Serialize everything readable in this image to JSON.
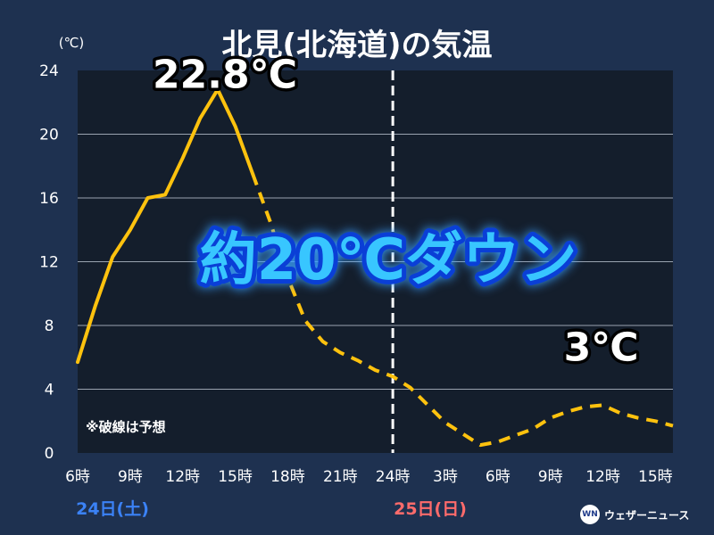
{
  "chart_data": {
    "type": "line",
    "title": "北見(北海道)の気温",
    "ylabel": "(℃)",
    "ylim": [
      0,
      24
    ],
    "yticks": [
      "0",
      "4",
      "8",
      "12",
      "16",
      "20",
      "24"
    ],
    "xlim": [
      6,
      40
    ],
    "x_tick_values": [
      6,
      9,
      12,
      15,
      18,
      21,
      24,
      27,
      30,
      33,
      36,
      39
    ],
    "x_tick_labels": [
      "6時",
      "9時",
      "12時",
      "15時",
      "18時",
      "21時",
      "24時",
      "3時",
      "6時",
      "9時",
      "12時",
      "15時"
    ],
    "date_labels": [
      {
        "text": "24日(土)",
        "color": "#3b82f6"
      },
      {
        "text": "25日(日)",
        "color": "#ff6b6b"
      }
    ],
    "divider_x": 24,
    "grid": true,
    "series": [
      {
        "color": "#ffc20e",
        "observed": [
          [
            6,
            5.7
          ],
          [
            7,
            9.2
          ],
          [
            8,
            12.3
          ],
          [
            9,
            14.0
          ],
          [
            10,
            16.0
          ],
          [
            11,
            16.2
          ],
          [
            12,
            18.5
          ],
          [
            13,
            21.0
          ],
          [
            14,
            22.8
          ],
          [
            15,
            20.5
          ],
          [
            16,
            17.5
          ]
        ],
        "forecast": [
          [
            16,
            17.5
          ],
          [
            17,
            14.5
          ],
          [
            18,
            11.0
          ],
          [
            19,
            8.3
          ],
          [
            20,
            7.0
          ],
          [
            21,
            6.3
          ],
          [
            22,
            5.8
          ],
          [
            23,
            5.2
          ],
          [
            24,
            4.8
          ],
          [
            25,
            4.1
          ],
          [
            26,
            3.0
          ],
          [
            27,
            1.9
          ],
          [
            28,
            1.2
          ],
          [
            29,
            0.5
          ],
          [
            30,
            0.7
          ],
          [
            31,
            1.1
          ],
          [
            32,
            1.5
          ],
          [
            33,
            2.2
          ],
          [
            34,
            2.6
          ],
          [
            35,
            2.9
          ],
          [
            36,
            3.0
          ],
          [
            37,
            2.5
          ],
          [
            38,
            2.2
          ],
          [
            39,
            2.0
          ],
          [
            40,
            1.7
          ]
        ]
      }
    ],
    "annotations": [
      {
        "text": "22.8℃",
        "x": 14,
        "y": 22.8
      },
      {
        "text": "3℃",
        "x": 36,
        "y": 3.0
      },
      {
        "text": "約20℃ダウン"
      },
      {
        "text": "※破線は予想"
      }
    ]
  },
  "branding": {
    "logo_icon": "wn-logo-icon",
    "logo_mark": "WN",
    "logo_text": "ウェザーニュース"
  }
}
